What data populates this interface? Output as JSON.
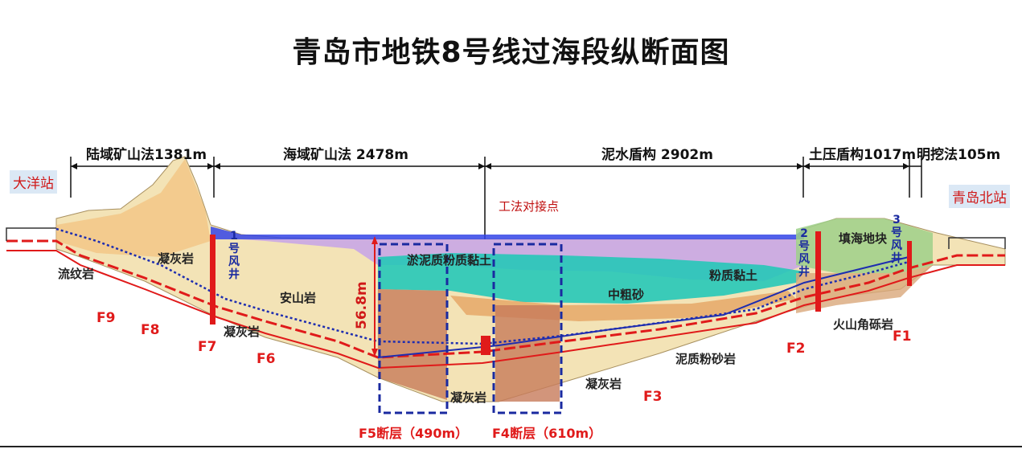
{
  "title": "青岛市地铁8号线过海段纵断面图",
  "segments": [
    {
      "label": "陆域矿山法1381m"
    },
    {
      "label": "海域矿山法  2478m"
    },
    {
      "label": "泥水盾构  2902m"
    },
    {
      "label": "土压盾构1017m"
    },
    {
      "label": "明挖法105m"
    }
  ],
  "stations": {
    "left": "大洋站",
    "right": "青岛北站"
  },
  "junction_label": "工法对接点",
  "depth_label": "56.8m",
  "rocks": {
    "liuwen": "流纹岩",
    "ninghui_1": "凝灰岩",
    "ninghui_2": "凝灰岩",
    "anshan": "安山岩",
    "yuni": "淤泥质粉质黏土",
    "zhongcusha": "中粗砂",
    "fenzhi": "粉质黏土",
    "tianhai": "填海地块",
    "huoshan": "火山角砾岩",
    "nizhi": "泥质粉砂岩",
    "ninghui_3": "凝灰岩",
    "ninghui_4": "凝灰岩"
  },
  "shafts": [
    {
      "num": "1",
      "chars": [
        "号",
        "风",
        "井"
      ]
    },
    {
      "num": "2",
      "chars": [
        "号",
        "风",
        "井"
      ]
    },
    {
      "num": "3",
      "chars": [
        "号",
        "风",
        "井"
      ]
    }
  ],
  "faults": [
    "F9",
    "F8",
    "F7",
    "F6",
    "F5断层（490m）",
    "F4断层（610m）",
    "F3",
    "F2",
    "F1"
  ],
  "colors": {
    "fault": "#e01a1a",
    "tunnel_blue": "#1e2db0",
    "tunnel_red": "#e01a1a",
    "sea": "#2a3ae0"
  }
}
